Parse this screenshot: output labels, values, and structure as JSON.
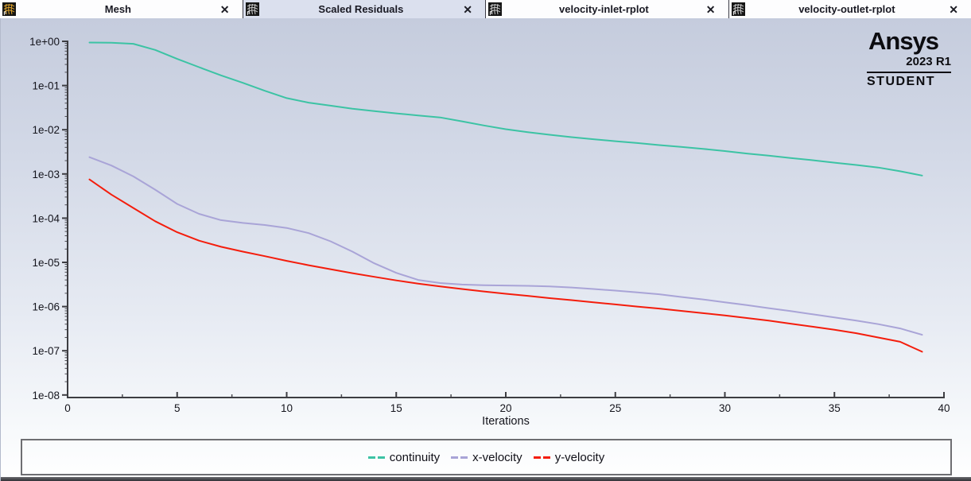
{
  "tabs": [
    {
      "label": "Mesh",
      "badge": "F",
      "close": "✕",
      "icon": "mesh-icon",
      "icon_color": "#dfa32b",
      "active": false
    },
    {
      "label": "Scaled Residuals",
      "badge": "F",
      "close": "✕",
      "icon": "residual-plot-icon",
      "icon_color": "#c9c9c9",
      "active": true
    },
    {
      "label": "velocity-inlet-rplot",
      "badge": "F",
      "close": "✕",
      "icon": "residual-plot-icon",
      "icon_color": "#c9c9c9",
      "active": false
    },
    {
      "label": "velocity-outlet-rplot",
      "badge": "F",
      "close": "✕",
      "icon": "residual-plot-icon",
      "icon_color": "#c9c9c9",
      "active": false
    }
  ],
  "logo": {
    "brand": "Ansys",
    "version": "2023 R1",
    "edition": "STUDENT"
  },
  "colors": {
    "active_tab_bg": "#dbe0ee",
    "plot_bg_top": "#c5ccdd",
    "plot_bg_bottom": "#ffffff",
    "axis": "#3d3d42",
    "continuity": "#3cc3a4",
    "x_velocity": "#a9a4d7",
    "y_velocity": "#f41d0c"
  },
  "chart_data": {
    "type": "line",
    "title": "Scaled Residuals",
    "xlabel": "Iterations",
    "ylabel": "",
    "y_scale": "log",
    "grid": false,
    "legend_position": "bottom",
    "xlim": [
      0,
      40
    ],
    "ylim": [
      1e-08,
      1
    ],
    "x_ticks": [
      0,
      5,
      10,
      15,
      20,
      25,
      30,
      35,
      40
    ],
    "x_minor_step": 2.5,
    "y_tick_labels": [
      "1e+00",
      "1e-01",
      "1e-02",
      "1e-03",
      "1e-04",
      "1e-05",
      "1e-06",
      "1e-07",
      "1e-08"
    ],
    "x": [
      1,
      2,
      3,
      4,
      5,
      6,
      7,
      8,
      9,
      10,
      11,
      12,
      13,
      14,
      15,
      16,
      17,
      18,
      19,
      20,
      21,
      22,
      23,
      24,
      25,
      26,
      27,
      28,
      29,
      30,
      31,
      32,
      33,
      34,
      35,
      36,
      37,
      38,
      39
    ],
    "series": [
      {
        "name": "continuity",
        "color": "#3cc3a4",
        "values": [
          0.94,
          0.93,
          0.88,
          0.64,
          0.4,
          0.26,
          0.17,
          0.115,
          0.076,
          0.052,
          0.041,
          0.035,
          0.03,
          0.0265,
          0.0235,
          0.021,
          0.019,
          0.0155,
          0.0125,
          0.0103,
          0.0088,
          0.0077,
          0.0068,
          0.0061,
          0.0055,
          0.005,
          0.0045,
          0.0041,
          0.0037,
          0.0033,
          0.0029,
          0.0026,
          0.0023,
          0.00205,
          0.0018,
          0.0016,
          0.0014,
          0.00115,
          0.00092
        ]
      },
      {
        "name": "x-velocity",
        "color": "#a9a4d7",
        "values": [
          0.0024,
          0.00155,
          0.00088,
          0.00044,
          0.00021,
          0.000125,
          9e-05,
          7.8e-05,
          7e-05,
          6e-05,
          4.6e-05,
          3e-05,
          1.75e-05,
          9.5e-06,
          5.8e-06,
          4e-06,
          3.4e-06,
          3.15e-06,
          3.05e-06,
          3e-06,
          2.95e-06,
          2.85e-06,
          2.7e-06,
          2.5e-06,
          2.3e-06,
          2.1e-06,
          1.9e-06,
          1.65e-06,
          1.45e-06,
          1.25e-06,
          1.08e-06,
          9.2e-07,
          7.9e-07,
          6.7e-07,
          5.7e-07,
          4.8e-07,
          4e-07,
          3.2e-07,
          2.3e-07
        ]
      },
      {
        "name": "y-velocity",
        "color": "#f41d0c",
        "values": [
          0.00075,
          0.00034,
          0.00017,
          8.5e-05,
          4.8e-05,
          3.1e-05,
          2.25e-05,
          1.75e-05,
          1.38e-05,
          1.08e-05,
          8.6e-06,
          7e-06,
          5.7e-06,
          4.7e-06,
          3.9e-06,
          3.3e-06,
          2.85e-06,
          2.5e-06,
          2.2e-06,
          1.95e-06,
          1.75e-06,
          1.55e-06,
          1.4e-06,
          1.25e-06,
          1.12e-06,
          1e-06,
          9e-07,
          8e-07,
          7.1e-07,
          6.3e-07,
          5.5e-07,
          4.8e-07,
          4.1e-07,
          3.5e-07,
          3e-07,
          2.5e-07,
          2e-07,
          1.6e-07,
          9.5e-08
        ]
      }
    ]
  }
}
